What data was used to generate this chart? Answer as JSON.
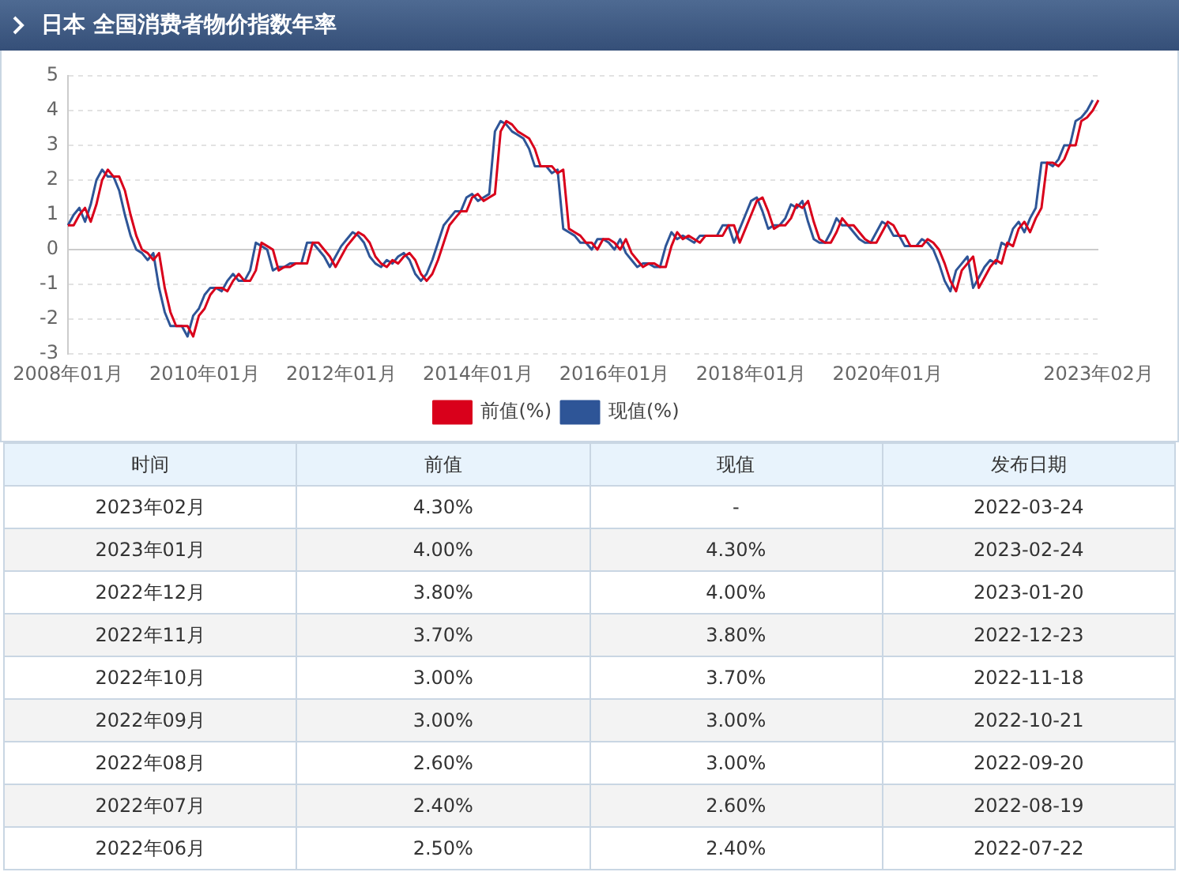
{
  "chart_data": {
    "type": "line",
    "title": "日本 全国消费者物价指数年率",
    "categories": [
      "2008年01月",
      null,
      null,
      null,
      null,
      null,
      null,
      null,
      null,
      null,
      null,
      null,
      null,
      null,
      null,
      null,
      null,
      null,
      null,
      null,
      null,
      null,
      null,
      null,
      "2010年01月",
      null,
      null,
      null,
      null,
      null,
      null,
      null,
      null,
      null,
      null,
      null,
      null,
      null,
      null,
      null,
      null,
      null,
      null,
      null,
      null,
      null,
      null,
      null,
      "2012年01月",
      null,
      null,
      null,
      null,
      null,
      null,
      null,
      null,
      null,
      null,
      null,
      null,
      null,
      null,
      null,
      null,
      null,
      null,
      null,
      null,
      null,
      null,
      null,
      "2014年01月",
      null,
      null,
      null,
      null,
      null,
      null,
      null,
      null,
      null,
      null,
      null,
      null,
      null,
      null,
      null,
      null,
      null,
      null,
      null,
      null,
      null,
      null,
      null,
      "2016年01月",
      null,
      null,
      null,
      null,
      null,
      null,
      null,
      null,
      null,
      null,
      null,
      null,
      null,
      null,
      null,
      null,
      null,
      null,
      null,
      null,
      null,
      null,
      null,
      "2018年01月",
      null,
      null,
      null,
      null,
      null,
      null,
      null,
      null,
      null,
      null,
      null,
      null,
      null,
      null,
      null,
      null,
      null,
      null,
      null,
      null,
      null,
      null,
      null,
      "2020年01月",
      null,
      null,
      null,
      null,
      null,
      null,
      null,
      null,
      null,
      null,
      null,
      null,
      null,
      null,
      null,
      null,
      null,
      null,
      null,
      null,
      null,
      null,
      null,
      null,
      null,
      null,
      null,
      null,
      null,
      null,
      null,
      null,
      null,
      null,
      null,
      null,
      "2023年02月"
    ],
    "series": [
      {
        "name": "前值(%)",
        "color": "#d9001b",
        "values": [
          0.7,
          0.7,
          1.0,
          1.2,
          0.8,
          1.3,
          2.0,
          2.3,
          2.1,
          2.1,
          1.7,
          1.0,
          0.4,
          0.0,
          -0.1,
          -0.3,
          -0.1,
          -1.1,
          -1.8,
          -2.2,
          -2.2,
          -2.2,
          -2.5,
          -1.9,
          -1.7,
          -1.3,
          -1.1,
          -1.1,
          -1.2,
          -0.9,
          -0.7,
          -0.9,
          -0.9,
          -0.6,
          0.2,
          0.1,
          0.0,
          -0.6,
          -0.5,
          -0.5,
          -0.4,
          -0.4,
          -0.4,
          0.2,
          0.2,
          0.0,
          -0.2,
          -0.5,
          -0.2,
          0.1,
          0.3,
          0.5,
          0.4,
          0.2,
          -0.2,
          -0.4,
          -0.5,
          -0.3,
          -0.4,
          -0.2,
          -0.1,
          -0.3,
          -0.7,
          -0.9,
          -0.7,
          -0.3,
          0.2,
          0.7,
          0.9,
          1.1,
          1.1,
          1.5,
          1.6,
          1.4,
          1.5,
          1.6,
          3.4,
          3.7,
          3.6,
          3.4,
          3.3,
          3.2,
          2.9,
          2.4,
          2.4,
          2.4,
          2.2,
          2.3,
          0.6,
          0.5,
          0.4,
          0.2,
          0.2,
          0.0,
          0.3,
          0.3,
          0.2,
          0.0,
          0.3,
          -0.1,
          -0.3,
          -0.5,
          -0.4,
          -0.4,
          -0.5,
          -0.5,
          0.1,
          0.5,
          0.3,
          0.4,
          0.3,
          0.2,
          0.4,
          0.4,
          0.4,
          0.4,
          0.7,
          0.7,
          0.2,
          0.6,
          1.0,
          1.4,
          1.5,
          1.1,
          0.6,
          0.7,
          0.7,
          0.9,
          1.3,
          1.2,
          1.4,
          0.8,
          0.3,
          0.2,
          0.2,
          0.5,
          0.9,
          0.7,
          0.7,
          0.5,
          0.3,
          0.2,
          0.2,
          0.5,
          0.8,
          0.7,
          0.4,
          0.4,
          0.1,
          0.1,
          0.1,
          0.3,
          0.2,
          0.0,
          -0.4,
          -0.9,
          -1.2,
          -0.6,
          -0.4,
          -0.2,
          -1.1,
          -0.8,
          -0.5,
          -0.3,
          -0.4,
          0.2,
          0.1,
          0.6,
          0.8,
          0.5,
          0.9,
          1.2,
          2.5,
          2.5,
          2.4,
          2.6,
          3.0,
          3.0,
          3.7,
          3.8,
          4.0,
          4.3
        ]
      },
      {
        "name": "现值(%)",
        "color": "#2e5597",
        "values": [
          0.7,
          1.0,
          1.2,
          0.8,
          1.3,
          2.0,
          2.3,
          2.1,
          2.1,
          1.7,
          1.0,
          0.4,
          0.0,
          -0.1,
          -0.3,
          -0.1,
          -1.1,
          -1.8,
          -2.2,
          -2.2,
          -2.2,
          -2.5,
          -1.9,
          -1.7,
          -1.3,
          -1.1,
          -1.1,
          -1.2,
          -0.9,
          -0.7,
          -0.9,
          -0.9,
          -0.6,
          0.2,
          0.1,
          0.0,
          -0.6,
          -0.5,
          -0.5,
          -0.4,
          -0.4,
          -0.4,
          0.2,
          0.2,
          0.0,
          -0.2,
          -0.5,
          -0.2,
          0.1,
          0.3,
          0.5,
          0.4,
          0.2,
          -0.2,
          -0.4,
          -0.5,
          -0.3,
          -0.4,
          -0.2,
          -0.1,
          -0.3,
          -0.7,
          -0.9,
          -0.7,
          -0.3,
          0.2,
          0.7,
          0.9,
          1.1,
          1.1,
          1.5,
          1.6,
          1.4,
          1.5,
          1.6,
          3.4,
          3.7,
          3.6,
          3.4,
          3.3,
          3.2,
          2.9,
          2.4,
          2.4,
          2.4,
          2.2,
          2.3,
          0.6,
          0.5,
          0.4,
          0.2,
          0.2,
          0.0,
          0.3,
          0.3,
          0.2,
          0.0,
          0.3,
          -0.1,
          -0.3,
          -0.5,
          -0.4,
          -0.4,
          -0.5,
          -0.5,
          0.1,
          0.5,
          0.3,
          0.4,
          0.3,
          0.2,
          0.4,
          0.4,
          0.4,
          0.4,
          0.7,
          0.7,
          0.2,
          0.6,
          1.0,
          1.4,
          1.5,
          1.1,
          0.6,
          0.7,
          0.7,
          0.9,
          1.3,
          1.2,
          1.4,
          0.8,
          0.3,
          0.2,
          0.2,
          0.5,
          0.9,
          0.7,
          0.7,
          0.5,
          0.3,
          0.2,
          0.2,
          0.5,
          0.8,
          0.7,
          0.4,
          0.4,
          0.1,
          0.1,
          0.1,
          0.3,
          0.2,
          0.0,
          -0.4,
          -0.9,
          -1.2,
          -0.6,
          -0.4,
          -0.2,
          -1.1,
          -0.8,
          -0.5,
          -0.3,
          -0.4,
          0.2,
          0.1,
          0.6,
          0.8,
          0.5,
          0.9,
          1.2,
          2.5,
          2.5,
          2.4,
          2.6,
          3.0,
          3.0,
          3.7,
          3.8,
          4.0,
          4.3,
          null
        ]
      }
    ],
    "ylim": [
      -3,
      5
    ],
    "yticks": [
      -3,
      -2,
      -1,
      0,
      1,
      2,
      3,
      4,
      5
    ],
    "grid": "y",
    "legend": "bottom",
    "annotations": [
      "时间",
      "前值",
      "现值",
      "发布日期",
      "2023年02月",
      "4.30%",
      "-",
      "2022-03-24",
      "2023年01月",
      "4.00%",
      "4.30%",
      "2023-02-24",
      "2022年12月",
      "3.80%",
      "4.00%",
      "2023-01-20",
      "2022年11月",
      "3.70%",
      "3.80%",
      "2022-12-23",
      "2022年10月",
      "3.00%",
      "3.70%",
      "2022-11-18",
      "2022年09月",
      "3.00%",
      "3.00%",
      "2022-10-21",
      "2022年08月",
      "2.60%",
      "3.00%",
      "2022-09-20",
      "2022年07月",
      "2.40%",
      "2.60%",
      "2022-08-19",
      "2022年06月",
      "2.50%",
      "2.40%",
      "2022-07-22"
    ]
  }
}
